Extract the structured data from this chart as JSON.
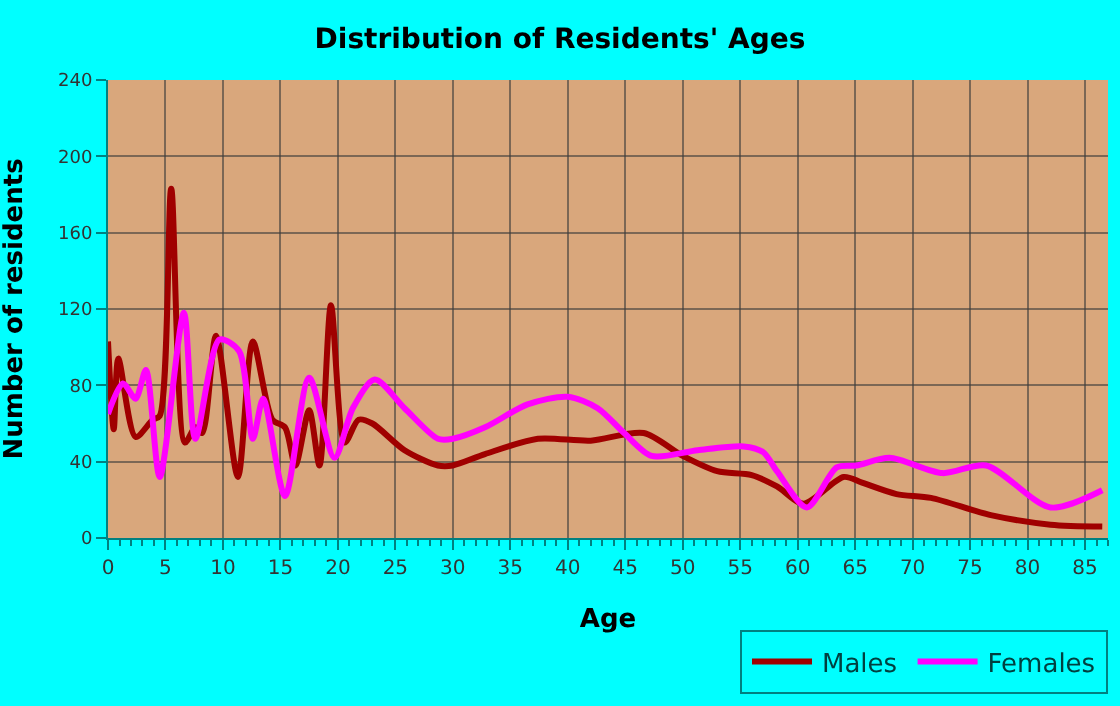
{
  "chart_data": {
    "type": "line",
    "title": "Distribution of Residents' Ages",
    "xlabel": "Age",
    "ylabel": "Number of residents",
    "xlim": [
      0,
      87
    ],
    "xticks": [
      0,
      5,
      10,
      15,
      20,
      25,
      30,
      35,
      40,
      45,
      50,
      55,
      60,
      65,
      70,
      75,
      80,
      85
    ],
    "ylim": [
      0,
      240
    ],
    "yticks": [
      0,
      40,
      80,
      120,
      160,
      200,
      240
    ],
    "grid": true,
    "legend": "bottom right",
    "marker": "none",
    "line_style": "solid",
    "series": [
      {
        "name": "Males",
        "color": "#a00000",
        "x": [
          0,
          0.5,
          0.9,
          2.4,
          3.9,
          4.5,
          5.5,
          6.7,
          7.6,
          8.2,
          9.4,
          11.3,
          12.6,
          14.3,
          15.4,
          16.3,
          17.5,
          18.4,
          19.4,
          20.6,
          21.8,
          23,
          25.8,
          28.7,
          30,
          32.8,
          37.4,
          42,
          46.6,
          50,
          53,
          56,
          58.2,
          60.5,
          64,
          65.6,
          68.6,
          71.6,
          76.8,
          82,
          86.5
        ],
        "values": [
          103,
          57,
          94,
          53,
          62,
          64,
          183,
          50,
          58,
          55,
          106,
          32,
          103,
          62,
          58,
          38,
          67,
          38,
          122,
          50,
          62,
          60,
          46,
          38,
          38,
          44,
          52,
          51,
          55,
          43,
          35,
          33,
          27,
          18,
          32,
          29,
          23,
          21,
          12,
          7,
          6
        ]
      },
      {
        "name": "Females",
        "color": "#ff00ff",
        "x": [
          0,
          1.3,
          2.4,
          3.3,
          4.5,
          6.6,
          7.6,
          9.7,
          11.4,
          12.6,
          13.5,
          15.4,
          17.5,
          19.7,
          21.3,
          23.2,
          25.8,
          28.7,
          30,
          32.8,
          36.5,
          40,
          42.6,
          44.9,
          47.3,
          51.3,
          55.3,
          57,
          58.2,
          60.8,
          63.4,
          65.1,
          68,
          72.6,
          76.4,
          82,
          86.5
        ],
        "values": [
          65,
          81,
          73,
          88,
          32,
          118,
          52,
          104,
          98,
          52,
          73,
          22,
          84,
          42,
          68,
          83,
          68,
          52,
          52,
          58,
          70,
          74,
          68,
          55,
          43,
          46,
          48,
          45,
          35,
          16,
          37,
          38,
          42,
          34,
          38,
          16,
          25
        ]
      }
    ]
  }
}
